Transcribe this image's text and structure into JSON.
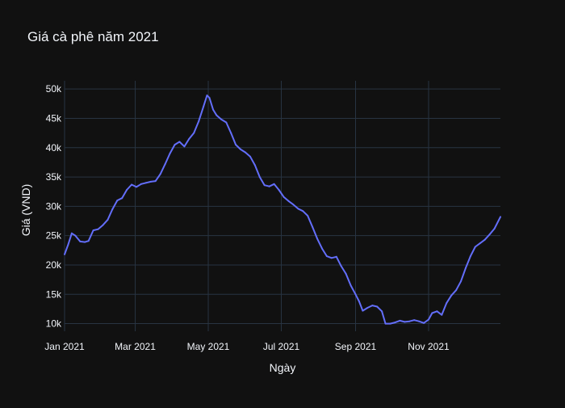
{
  "chart_data": {
    "type": "line",
    "title": "Giá cà phê năm 2021",
    "xlabel": "Ngày",
    "ylabel": "Giá (VND)",
    "xlim": [
      "2021-01-01",
      "2021-12-31"
    ],
    "ylim": [
      8700,
      51400
    ],
    "grid": true,
    "x_ticks": [
      "2021-01-01",
      "2021-03-01",
      "2021-05-01",
      "2021-07-01",
      "2021-09-01",
      "2021-11-01"
    ],
    "x_tick_labels": [
      "Jan 2021",
      "Mar 2021",
      "May 2021",
      "Jul 2021",
      "Sep 2021",
      "Nov 2021"
    ],
    "y_ticks": [
      10000,
      15000,
      20000,
      25000,
      30000,
      35000,
      40000,
      45000,
      50000
    ],
    "y_tick_labels": [
      "10k",
      "15k",
      "20k",
      "25k",
      "30k",
      "35k",
      "40k",
      "45k",
      "50k"
    ],
    "colors": {
      "background": "#111111",
      "grid": "#283442",
      "line": "#636efa",
      "text": "#f2f5fa"
    },
    "series": [
      {
        "x": [
          "2021-01-01",
          "2021-01-04",
          "2021-01-07",
          "2021-01-10",
          "2021-01-14",
          "2021-01-18",
          "2021-01-21",
          "2021-01-25",
          "2021-01-29",
          "2021-02-02",
          "2021-02-06",
          "2021-02-10",
          "2021-02-14",
          "2021-02-18",
          "2021-02-22",
          "2021-02-26",
          "2021-03-02",
          "2021-03-06",
          "2021-03-10",
          "2021-03-14",
          "2021-03-18",
          "2021-03-22",
          "2021-03-26",
          "2021-03-30",
          "2021-04-03",
          "2021-04-07",
          "2021-04-11",
          "2021-04-15",
          "2021-04-19",
          "2021-04-23",
          "2021-04-27",
          "2021-04-30",
          "2021-05-02",
          "2021-05-05",
          "2021-05-08",
          "2021-05-12",
          "2021-05-16",
          "2021-05-20",
          "2021-05-24",
          "2021-05-28",
          "2021-06-01",
          "2021-06-05",
          "2021-06-09",
          "2021-06-13",
          "2021-06-17",
          "2021-06-21",
          "2021-06-25",
          "2021-06-29",
          "2021-07-03",
          "2021-07-07",
          "2021-07-11",
          "2021-07-15",
          "2021-07-19",
          "2021-07-23",
          "2021-07-27",
          "2021-07-31",
          "2021-08-04",
          "2021-08-08",
          "2021-08-12",
          "2021-08-16",
          "2021-08-20",
          "2021-08-24",
          "2021-08-28",
          "2021-09-01",
          "2021-09-04",
          "2021-09-07",
          "2021-09-11",
          "2021-09-15",
          "2021-09-19",
          "2021-09-23",
          "2021-09-26",
          "2021-09-30",
          "2021-10-04",
          "2021-10-08",
          "2021-10-12",
          "2021-10-16",
          "2021-10-20",
          "2021-10-24",
          "2021-10-28",
          "2021-11-01",
          "2021-11-04",
          "2021-11-08",
          "2021-11-12",
          "2021-11-16",
          "2021-11-20",
          "2021-11-24",
          "2021-11-28",
          "2021-12-02",
          "2021-12-06",
          "2021-12-10",
          "2021-12-14",
          "2021-12-18",
          "2021-12-22",
          "2021-12-26",
          "2021-12-31"
        ],
        "y": [
          21800,
          23500,
          25400,
          25000,
          24000,
          23900,
          24100,
          25900,
          26100,
          26800,
          27700,
          29500,
          31000,
          31400,
          32800,
          33700,
          33300,
          33800,
          34000,
          34200,
          34300,
          35500,
          37200,
          39000,
          40500,
          41000,
          40200,
          41500,
          42500,
          44500,
          47000,
          48900,
          48500,
          46500,
          45500,
          44800,
          44300,
          42500,
          40500,
          39700,
          39200,
          38500,
          37000,
          35000,
          33600,
          33400,
          33800,
          32800,
          31600,
          30900,
          30300,
          29600,
          29200,
          28400,
          26500,
          24500,
          22800,
          21500,
          21200,
          21400,
          19800,
          18500,
          16500,
          15000,
          13800,
          12200,
          12700,
          13100,
          12900,
          12100,
          10000,
          10000,
          10200,
          10500,
          10300,
          10400,
          10600,
          10400,
          10100,
          10700,
          11800,
          12100,
          11500,
          13500,
          14800,
          15700,
          17200,
          19500,
          21500,
          23100,
          23700,
          24300,
          25200,
          26200,
          28200
        ]
      }
    ]
  }
}
